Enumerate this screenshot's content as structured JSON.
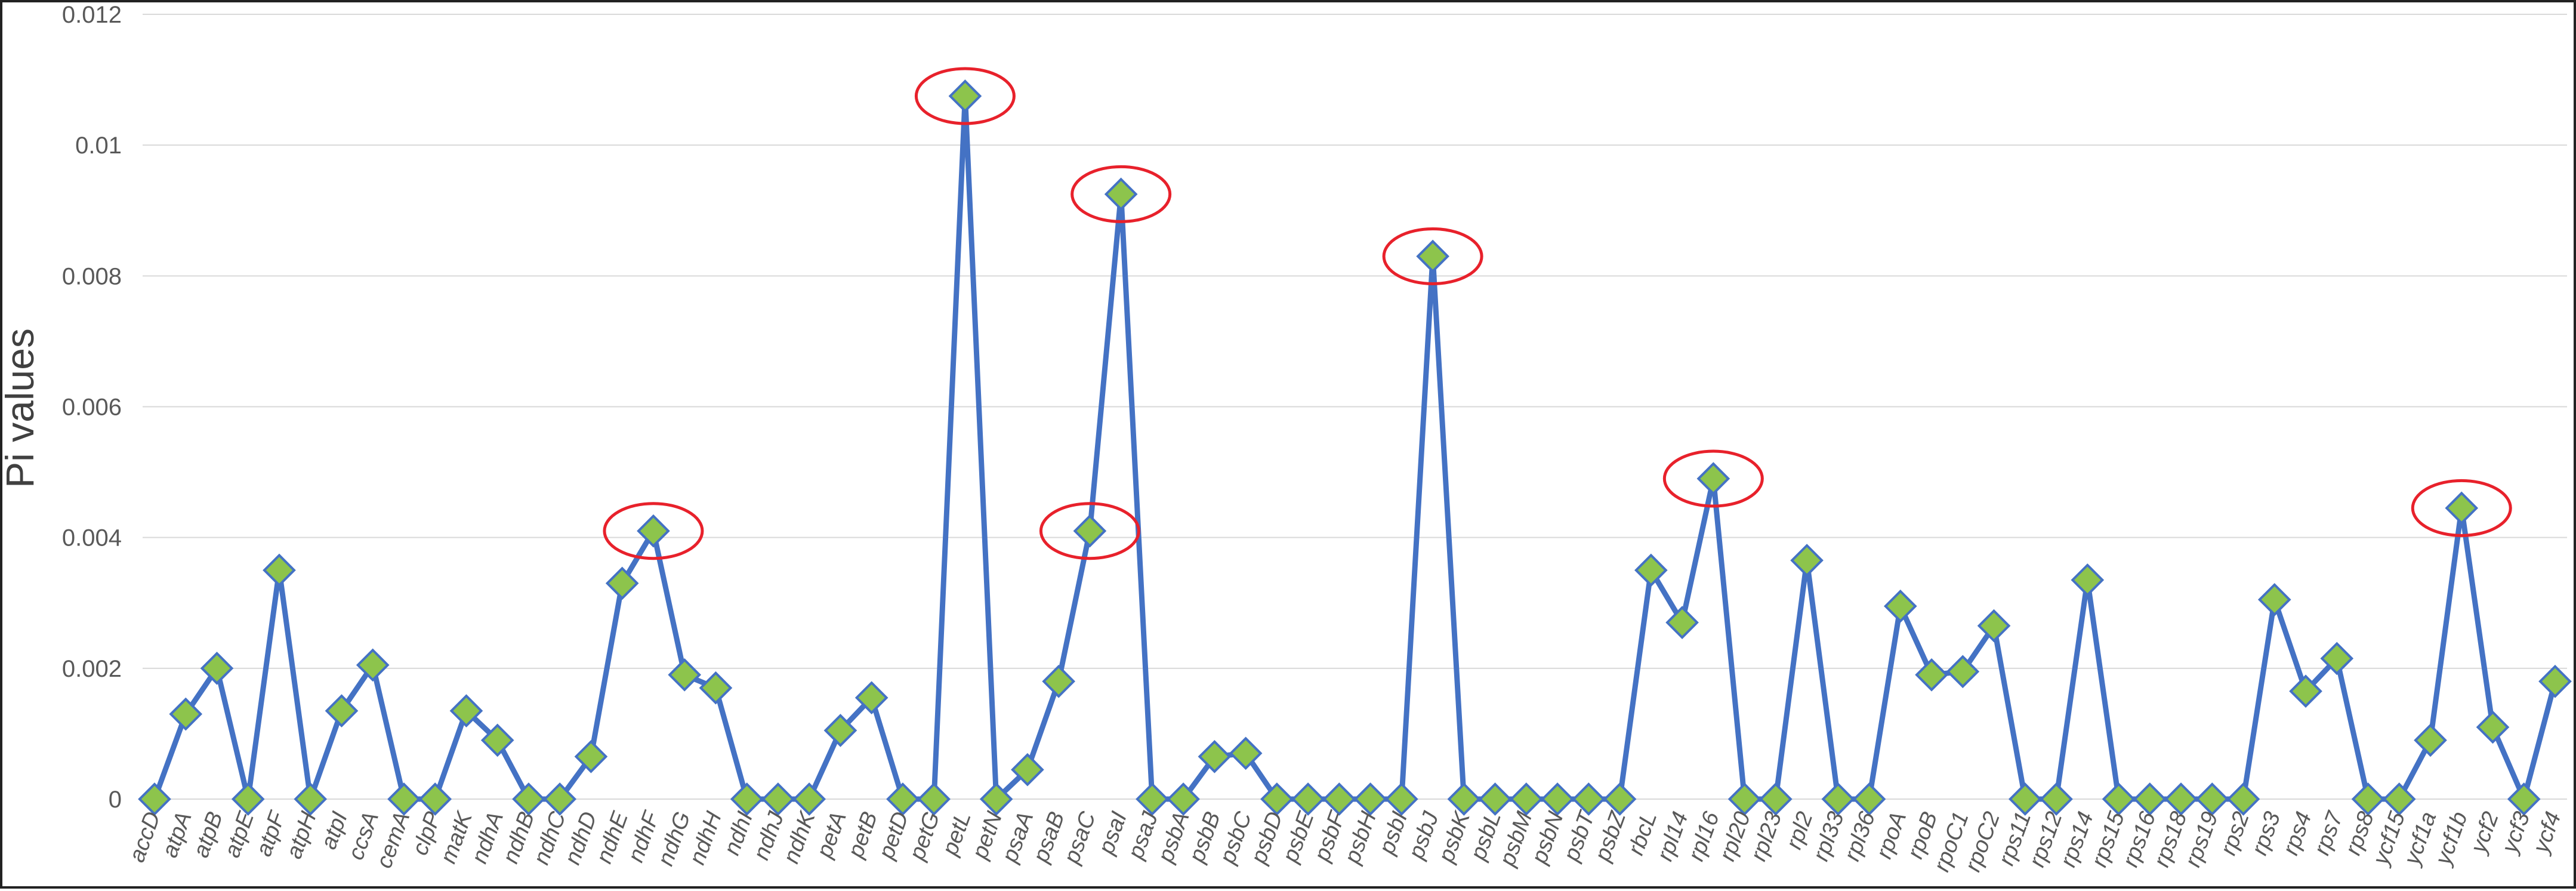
{
  "chart_data": {
    "type": "line",
    "title": "",
    "xlabel": "",
    "ylabel": "Pi values",
    "ylim": [
      0,
      0.012
    ],
    "yticks": [
      "0",
      "0.002",
      "0.004",
      "0.006",
      "0.008",
      "0.01",
      "0.012"
    ],
    "grid": true,
    "legend": "none",
    "colors": {
      "line": "#4472C4",
      "marker_fill": "#8DC44C",
      "marker_edge": "#4472C4",
      "highlight_circle": "#E8212B",
      "grid": "#D9D9D9"
    },
    "categories": [
      "accD",
      "atpA",
      "atpB",
      "atpE",
      "atpF",
      "atpH",
      "atpI",
      "ccsA",
      "cemA",
      "clpP",
      "matK",
      "ndhA",
      "ndhB",
      "ndhC",
      "ndhD",
      "ndhE",
      "ndhF",
      "ndhG",
      "ndhH",
      "ndhI",
      "ndhJ",
      "ndhK",
      "petA",
      "petB",
      "petD",
      "petG",
      "petL",
      "petN",
      "psaA",
      "psaB",
      "psaC",
      "psaI",
      "psaJ",
      "psbA",
      "psbB",
      "psbC",
      "psbD",
      "psbE",
      "psbF",
      "psbH",
      "psbI",
      "psbJ",
      "psbK",
      "psbL",
      "psbM",
      "psbN",
      "psbT",
      "psbZ",
      "rbcL",
      "rpl14",
      "rpl16",
      "rpl20",
      "rpl23",
      "rpl2",
      "rpl33",
      "rpl36",
      "rpoA",
      "rpoB",
      "rpoC1",
      "rpoC2",
      "rps11",
      "rps12",
      "rps14",
      "rps15",
      "rps16",
      "rps18",
      "rps19",
      "rps2",
      "rps3",
      "rps4",
      "rps7",
      "rps8",
      "ycf15",
      "ycf1a",
      "ycf1b",
      "ycf2",
      "ycf3",
      "ycf4"
    ],
    "values": [
      0,
      0.0013,
      0.002,
      0,
      0.0035,
      0,
      0.00135,
      0.00205,
      0,
      0,
      0.00135,
      0.0009,
      0,
      0,
      0.00065,
      0.0033,
      0.0041,
      0.0019,
      0.0017,
      0,
      0,
      0,
      0.00105,
      0.00155,
      0,
      0,
      0.01075,
      0,
      0.00045,
      0.0018,
      0.0041,
      0.00925,
      0,
      0,
      0.00065,
      0.0007,
      0,
      0,
      0,
      0,
      0,
      0.0083,
      0,
      0,
      0,
      0,
      0,
      0,
      0.0035,
      0.0027,
      0.0049,
      0,
      0,
      0.00365,
      0,
      0,
      0.00295,
      0.0019,
      0.00195,
      0.00265,
      0,
      0,
      0.00335,
      0,
      0,
      0,
      0,
      0,
      0.00305,
      0.00165,
      0.00215,
      0,
      0,
      0.0009,
      0.00445,
      0.0011,
      0,
      0.0018
    ],
    "highlighted": [
      "ndhF",
      "petL",
      "psaC",
      "psaI",
      "psbJ",
      "rpl16",
      "ycf1b"
    ]
  }
}
